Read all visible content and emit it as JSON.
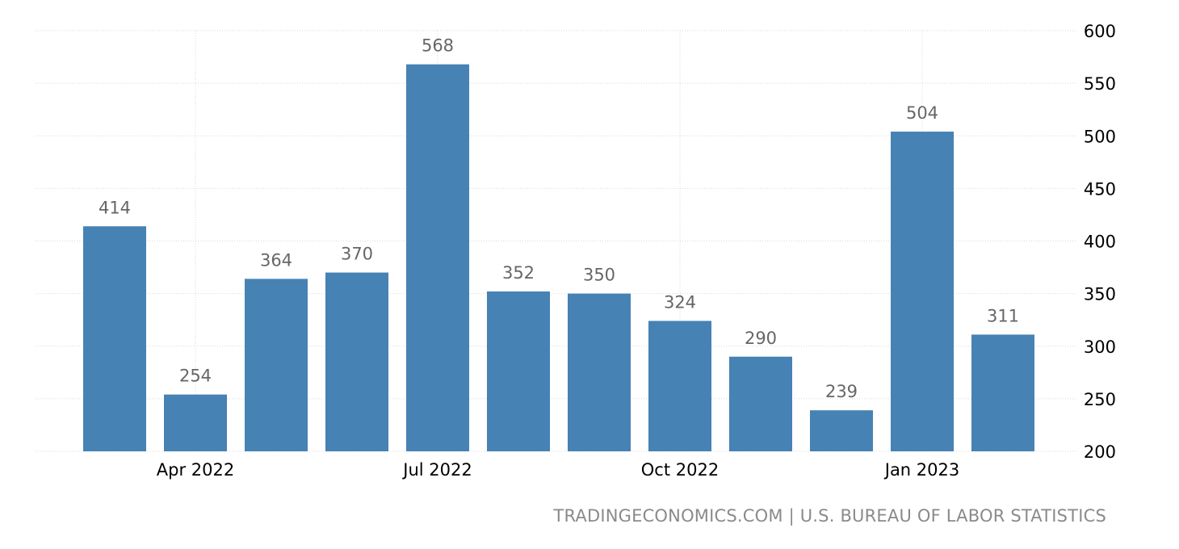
{
  "source_text": "TRADINGECONOMICS.COM | U.S. BUREAU OF LABOR STATISTICS",
  "chart_data": {
    "type": "bar",
    "categories": [
      "2022-03",
      "2022-04",
      "2022-05",
      "2022-06",
      "2022-07",
      "2022-08",
      "2022-09",
      "2022-10",
      "2022-11",
      "2022-12",
      "2023-01",
      "2023-02"
    ],
    "values": [
      414,
      254,
      364,
      370,
      568,
      352,
      350,
      324,
      290,
      239,
      504,
      311
    ],
    "x_tick_labels": [
      {
        "category": "2022-04",
        "label": "Apr 2022"
      },
      {
        "category": "2022-07",
        "label": "Jul 2022"
      },
      {
        "category": "2022-10",
        "label": "Oct 2022"
      },
      {
        "category": "2023-01",
        "label": "Jan 2023"
      }
    ],
    "y_ticks": [
      200,
      250,
      300,
      350,
      400,
      450,
      500,
      550,
      600
    ],
    "ylim": [
      200,
      600
    ],
    "title": "",
    "xlabel": "",
    "ylabel": "",
    "grid": true,
    "y_axis_side": "right",
    "bar_color": "#4682b4",
    "grid_color": "#d9d9d9",
    "data_label_color": "#666666"
  }
}
